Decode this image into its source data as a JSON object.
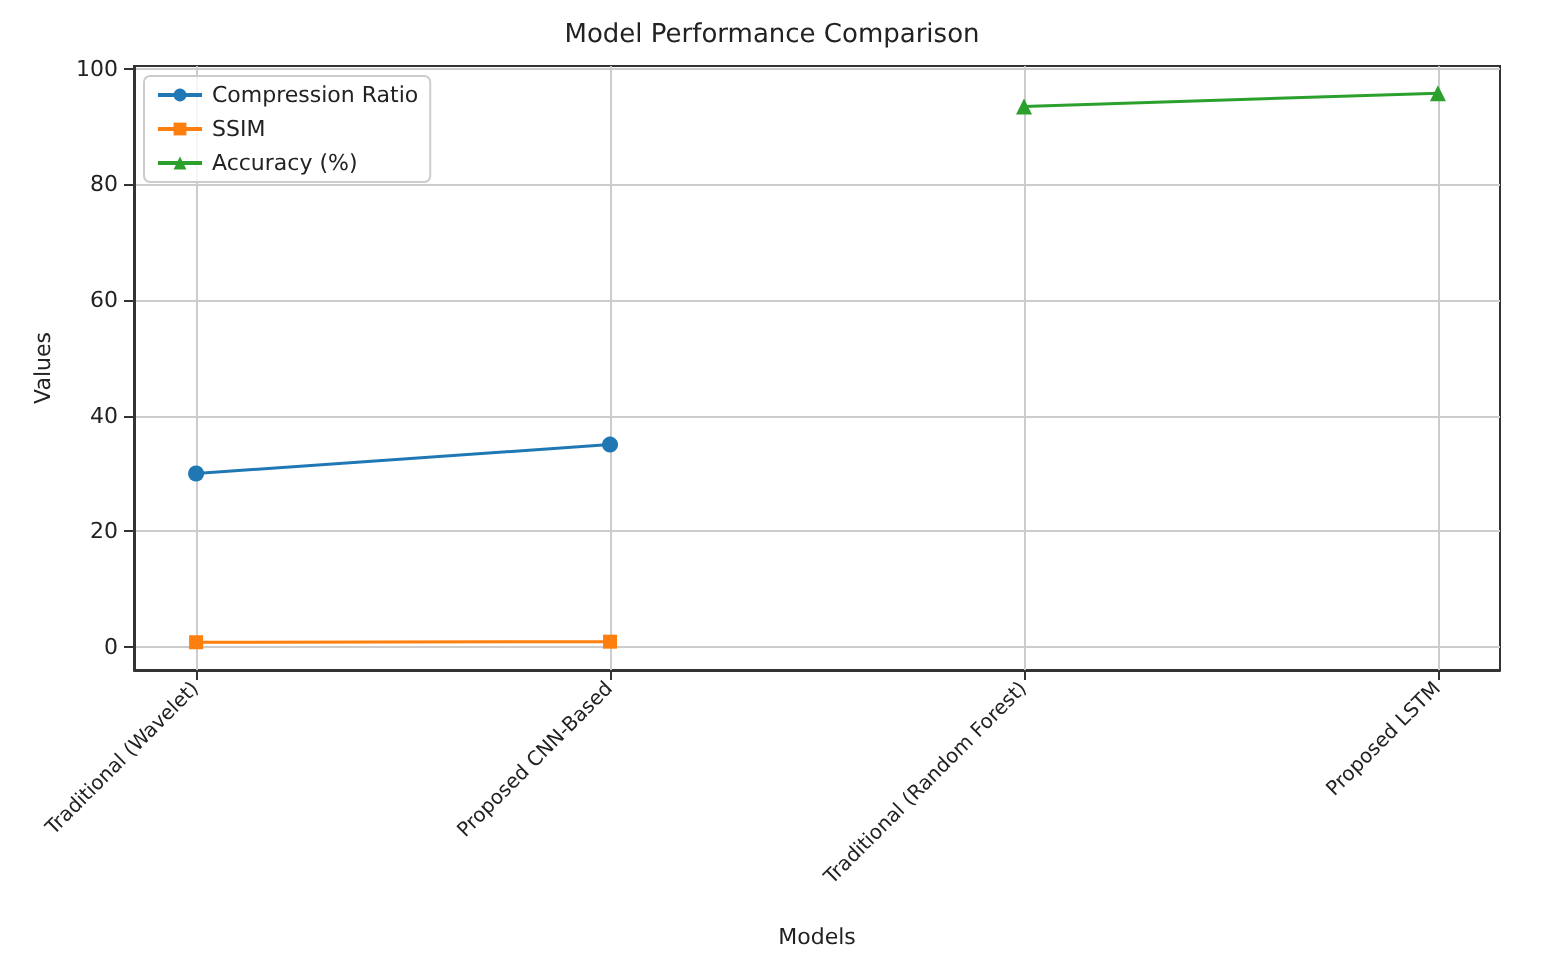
{
  "chart_data": {
    "type": "line",
    "title": "Model Performance Comparison",
    "xlabel": "Models",
    "ylabel": "Values",
    "categories": [
      "Traditional (Wavelet)",
      "Proposed CNN-Based",
      "Traditional (Random Forest)",
      "Proposed LSTM"
    ],
    "series": [
      {
        "name": "Compression Ratio",
        "color": "#1f77b4",
        "marker": "circle",
        "values": [
          30,
          35,
          null,
          null
        ]
      },
      {
        "name": "SSIM",
        "color": "#ff7f0e",
        "marker": "square",
        "values": [
          0.8,
          0.9,
          null,
          null
        ]
      },
      {
        "name": "Accuracy (%)",
        "color": "#2ca02c",
        "marker": "triangle",
        "values": [
          null,
          null,
          93.5,
          95.8
        ]
      }
    ],
    "ylim": [
      -4,
      100.5
    ],
    "yticks": [
      0,
      20,
      40,
      60,
      80,
      100
    ],
    "grid": true,
    "legend": "top left"
  }
}
